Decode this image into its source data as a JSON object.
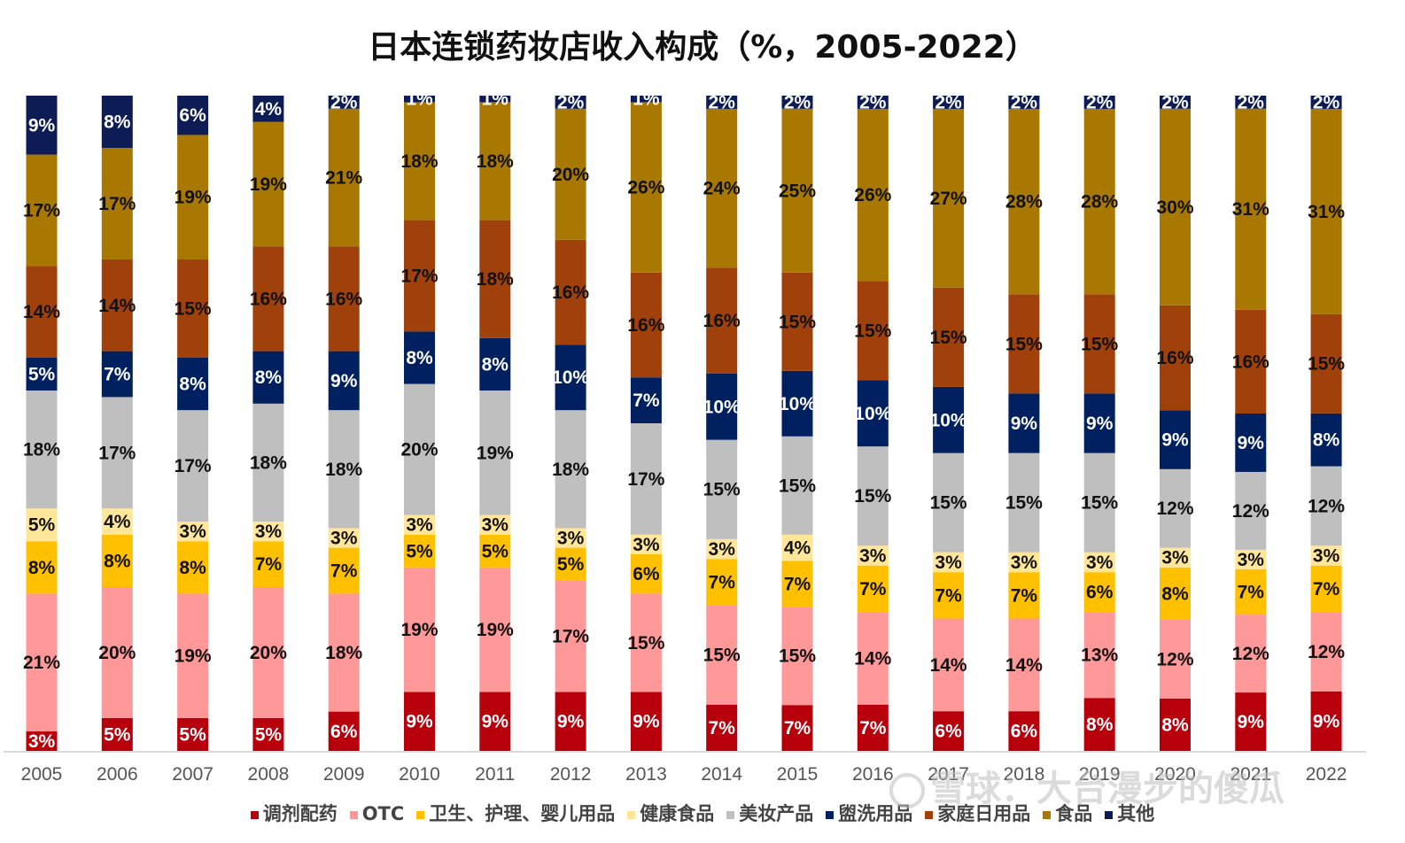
{
  "chart_data": {
    "type": "bar",
    "stacked": true,
    "title": "日本连锁药妆店收入构成（%，2005-2022）",
    "categories": [
      "2005",
      "2006",
      "2007",
      "2008",
      "2009",
      "2010",
      "2011",
      "2012",
      "2013",
      "2014",
      "2015",
      "2016",
      "2017",
      "2018",
      "2019",
      "2020",
      "2021",
      "2022"
    ],
    "ylim": [
      0,
      100
    ],
    "grid": false,
    "legend_position": "bottom",
    "series": [
      {
        "name": "调剂配药",
        "color": "#b7000b",
        "label_color": "#ffffff",
        "values": [
          3,
          5,
          5,
          5,
          6,
          9,
          9,
          9,
          9,
          7,
          7,
          7,
          6,
          6,
          8,
          8,
          9,
          9
        ]
      },
      {
        "name": "OTC",
        "color": "#ff9999",
        "label_color": "#111111",
        "values": [
          21,
          20,
          19,
          20,
          18,
          19,
          19,
          17,
          15,
          15,
          15,
          14,
          14,
          14,
          13,
          12,
          12,
          12
        ]
      },
      {
        "name": "卫生、护理、婴儿用品",
        "color": "#ffc000",
        "label_color": "#111111",
        "values": [
          8,
          8,
          8,
          7,
          7,
          5,
          5,
          5,
          6,
          7,
          7,
          7,
          7,
          7,
          6,
          8,
          7,
          7
        ]
      },
      {
        "name": "健康食品",
        "color": "#ffe699",
        "label_color": "#111111",
        "values": [
          5,
          4,
          3,
          3,
          3,
          3,
          3,
          3,
          3,
          3,
          4,
          3,
          3,
          3,
          3,
          3,
          3,
          3
        ]
      },
      {
        "name": "美妆产品",
        "color": "#bfbfbf",
        "label_color": "#111111",
        "values": [
          18,
          17,
          17,
          18,
          18,
          20,
          19,
          18,
          17,
          15,
          15,
          15,
          15,
          15,
          15,
          12,
          12,
          12
        ]
      },
      {
        "name": "盥洗用品",
        "color": "#002060",
        "label_color": "#ffffff",
        "values": [
          5,
          7,
          8,
          8,
          9,
          8,
          8,
          10,
          7,
          10,
          10,
          10,
          10,
          9,
          9,
          9,
          9,
          8
        ]
      },
      {
        "name": "家庭日用品",
        "color": "#a0400a",
        "label_color": "#111111",
        "values": [
          14,
          14,
          15,
          16,
          16,
          17,
          18,
          16,
          16,
          16,
          15,
          15,
          15,
          15,
          15,
          16,
          16,
          15
        ]
      },
      {
        "name": "食品",
        "color": "#a87800",
        "label_color": "#111111",
        "values": [
          17,
          17,
          19,
          19,
          21,
          18,
          18,
          20,
          26,
          24,
          25,
          26,
          27,
          28,
          28,
          30,
          31,
          31
        ]
      },
      {
        "name": "其他",
        "color": "#0e1c55",
        "label_color": "#ffffff",
        "values": [
          9,
          8,
          6,
          4,
          2,
          1,
          1,
          2,
          1,
          2,
          2,
          2,
          2,
          2,
          2,
          2,
          2,
          2
        ]
      }
    ]
  },
  "watermark": {
    "text": "雪球：大台漫步的傻瓜"
  }
}
